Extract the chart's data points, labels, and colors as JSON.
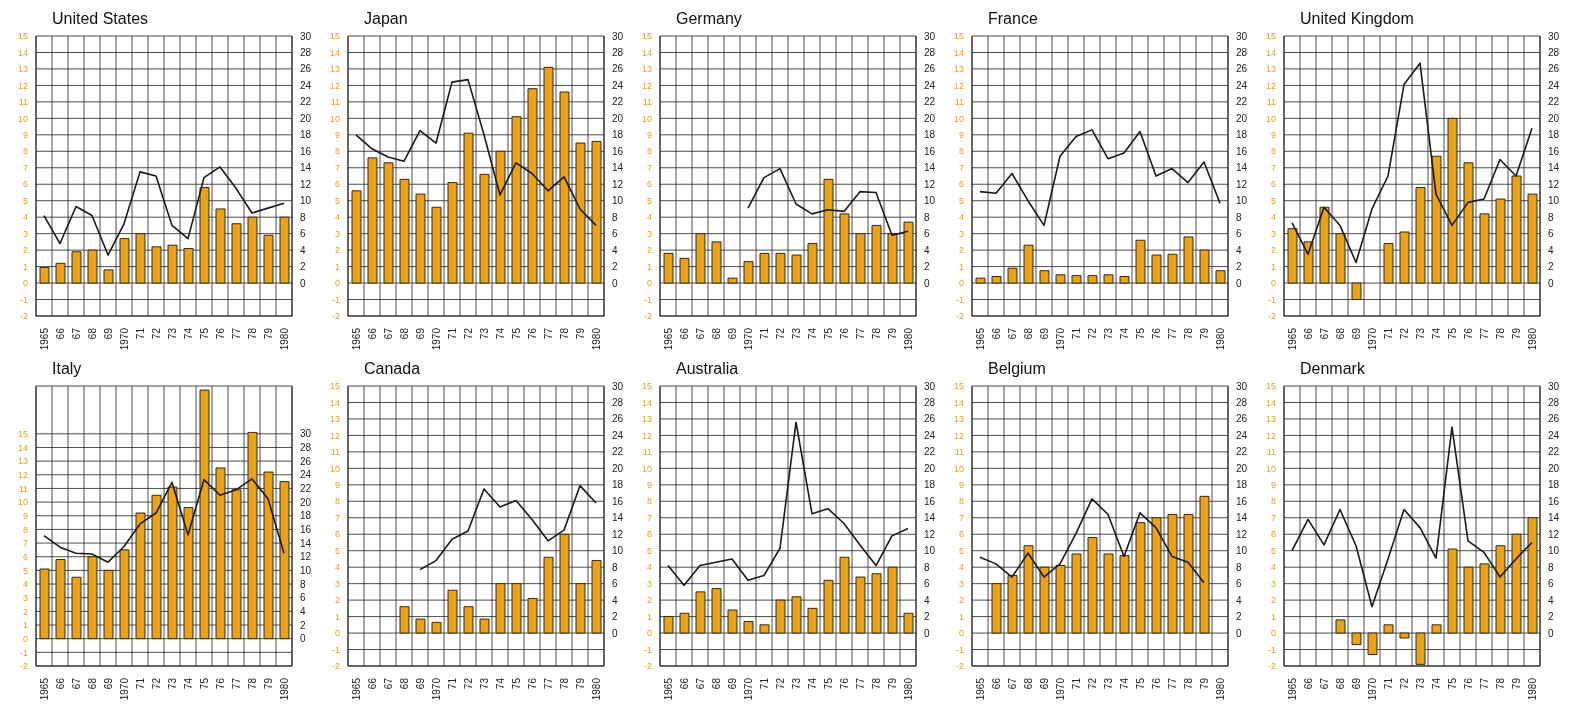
{
  "chart_data": [
    {
      "type": "bar",
      "title": "United States",
      "categories": [
        "1965",
        "66",
        "67",
        "68",
        "69",
        "1970",
        "71",
        "72",
        "73",
        "74",
        "75",
        "76",
        "77",
        "78",
        "79",
        "1980"
      ],
      "series": [
        {
          "color": "#e9a21f",
          "values": [
            0.95,
            1.2,
            1.9,
            2.0,
            0.8,
            2.7,
            3.0,
            2.2,
            2.3,
            2.1,
            5.8,
            4.5,
            3.6,
            4.0,
            2.9,
            4.0
          ]
        },
        {
          "type": "line",
          "axis": "y2",
          "color": "#1a1a1a",
          "values": [
            8.2,
            4.8,
            9.3,
            8.2,
            3.4,
            7.2,
            13.5,
            13.0,
            7.0,
            5.4,
            12.8,
            14.1,
            11.5,
            8.5,
            9.1,
            9.7
          ]
        }
      ],
      "ylim": [
        -2,
        15
      ],
      "yticks": [
        -2,
        -1,
        0,
        1,
        2,
        3,
        4,
        5,
        6,
        7,
        8,
        9,
        10,
        11,
        12,
        13,
        14,
        15
      ],
      "y2lim": [
        -4,
        30
      ],
      "y2ticks": [
        0,
        2,
        4,
        6,
        8,
        10,
        12,
        14,
        16,
        18,
        20,
        22,
        24,
        26,
        28,
        30
      ],
      "grid": true
    },
    {
      "type": "bar",
      "title": "Japan",
      "categories": [
        "1965",
        "66",
        "67",
        "68",
        "69",
        "1970",
        "71",
        "72",
        "73",
        "74",
        "75",
        "76",
        "77",
        "78",
        "79",
        "1980"
      ],
      "series": [
        {
          "color": "#e9a21f",
          "values": [
            5.6,
            7.6,
            7.3,
            6.3,
            5.4,
            4.6,
            6.1,
            9.1,
            6.6,
            8.0,
            10.1,
            11.8,
            13.1,
            11.6,
            8.5,
            8.6
          ]
        },
        {
          "type": "line",
          "axis": "y2",
          "color": "#1a1a1a",
          "values": [
            18.0,
            16.3,
            15.3,
            14.8,
            18.5,
            17.0,
            24.4,
            24.7,
            18.0,
            10.7,
            14.6,
            13.3,
            11.2,
            12.9,
            9.0,
            7.0
          ]
        }
      ],
      "ylim": [
        -2,
        15
      ],
      "yticks": [
        -2,
        -1,
        0,
        1,
        2,
        3,
        4,
        5,
        6,
        7,
        8,
        9,
        10,
        11,
        12,
        13,
        14,
        15
      ],
      "y2lim": [
        -4,
        30
      ],
      "y2ticks": [
        0,
        2,
        4,
        6,
        8,
        10,
        12,
        14,
        16,
        18,
        20,
        22,
        24,
        26,
        28,
        30
      ],
      "grid": true
    },
    {
      "type": "bar",
      "title": "Germany",
      "categories": [
        "1965",
        "66",
        "67",
        "68",
        "69",
        "1970",
        "71",
        "72",
        "73",
        "74",
        "75",
        "76",
        "77",
        "78",
        "79",
        "1980"
      ],
      "series": [
        {
          "color": "#e9a21f",
          "values": [
            1.8,
            1.5,
            3.0,
            2.5,
            0.3,
            1.3,
            1.8,
            1.8,
            1.7,
            2.4,
            6.3,
            4.2,
            3.0,
            3.5,
            3.0,
            3.7
          ]
        },
        {
          "type": "line",
          "axis": "y2",
          "color": "#1a1a1a",
          "values": [
            null,
            null,
            null,
            null,
            null,
            9.1,
            12.8,
            13.9,
            9.6,
            8.4,
            8.9,
            8.7,
            11.1,
            11.0,
            5.8,
            6.3
          ]
        }
      ],
      "ylim": [
        -2,
        15
      ],
      "yticks": [
        -2,
        -1,
        0,
        1,
        2,
        3,
        4,
        5,
        6,
        7,
        8,
        9,
        10,
        11,
        12,
        13,
        14,
        15
      ],
      "y2lim": [
        -4,
        30
      ],
      "y2ticks": [
        0,
        2,
        4,
        6,
        8,
        10,
        12,
        14,
        16,
        18,
        20,
        22,
        24,
        26,
        28,
        30
      ],
      "grid": true
    },
    {
      "type": "bar",
      "title": "France",
      "categories": [
        "1965",
        "66",
        "67",
        "68",
        "69",
        "1970",
        "71",
        "72",
        "73",
        "74",
        "75",
        "76",
        "77",
        "78",
        "79",
        "1980"
      ],
      "series": [
        {
          "color": "#e9a21f",
          "values": [
            0.3,
            0.4,
            0.9,
            2.3,
            0.75,
            0.5,
            0.45,
            0.45,
            0.5,
            0.4,
            2.6,
            1.7,
            1.75,
            2.8,
            2.0,
            0.75
          ]
        },
        {
          "type": "line",
          "axis": "y2",
          "color": "#1a1a1a",
          "values": [
            11.1,
            10.9,
            13.3,
            10.0,
            7.0,
            15.4,
            17.8,
            18.6,
            15.1,
            15.8,
            18.4,
            13.0,
            13.9,
            12.2,
            14.7,
            9.7
          ]
        }
      ],
      "ylim": [
        -2,
        15
      ],
      "yticks": [
        -2,
        -1,
        0,
        1,
        2,
        3,
        4,
        5,
        6,
        7,
        8,
        9,
        10,
        11,
        12,
        13,
        14,
        15
      ],
      "y2lim": [
        -4,
        30
      ],
      "y2ticks": [
        0,
        2,
        4,
        6,
        8,
        10,
        12,
        14,
        16,
        18,
        20,
        22,
        24,
        26,
        28,
        30
      ],
      "grid": true
    },
    {
      "type": "bar",
      "title": "United Kingdom",
      "categories": [
        "1965",
        "66",
        "67",
        "68",
        "69",
        "1970",
        "71",
        "72",
        "73",
        "74",
        "75",
        "76",
        "77",
        "78",
        "79",
        "1980"
      ],
      "series": [
        {
          "color": "#e9a21f",
          "values": [
            3.3,
            2.5,
            4.6,
            3.0,
            -1.0,
            null,
            2.4,
            3.1,
            5.8,
            7.7,
            10.0,
            7.3,
            4.2,
            5.1,
            6.5,
            5.4
          ]
        },
        {
          "type": "line",
          "axis": "y2",
          "color": "#1a1a1a",
          "values": [
            7.3,
            3.5,
            9.2,
            7.0,
            2.5,
            9.0,
            13.0,
            24.1,
            26.7,
            10.8,
            7.0,
            9.8,
            10.2,
            15.0,
            13.0,
            18.8
          ]
        }
      ],
      "ylim": [
        -2,
        15
      ],
      "yticks": [
        -2,
        -1,
        0,
        1,
        2,
        3,
        4,
        5,
        6,
        7,
        8,
        9,
        10,
        11,
        12,
        13,
        14,
        15
      ],
      "y2lim": [
        -4,
        30
      ],
      "y2ticks": [
        0,
        2,
        4,
        6,
        8,
        10,
        12,
        14,
        16,
        18,
        20,
        22,
        24,
        26,
        28,
        30
      ],
      "grid": true
    },
    {
      "type": "bar",
      "title": "Italy",
      "categories": [
        "1965",
        "66",
        "67",
        "68",
        "69",
        "1970",
        "71",
        "72",
        "73",
        "74",
        "75",
        "76",
        "77",
        "78",
        "79",
        "1980"
      ],
      "series": [
        {
          "color": "#e9a21f",
          "values": [
            5.1,
            5.8,
            4.5,
            6.0,
            5.0,
            6.5,
            9.2,
            10.5,
            11.1,
            9.6,
            18.2,
            12.5,
            10.9,
            15.1,
            12.2,
            11.5
          ]
        },
        {
          "type": "line",
          "axis": "y2",
          "color": "#1a1a1a",
          "values": [
            15.1,
            13.4,
            12.5,
            12.4,
            11.2,
            13.5,
            16.8,
            18.4,
            22.9,
            15.2,
            23.3,
            21.0,
            21.8,
            23.4,
            20.5,
            12.5
          ]
        }
      ],
      "ylim": [
        -2,
        18.5
      ],
      "yticks": [
        -2,
        -1,
        0,
        1,
        2,
        3,
        4,
        5,
        6,
        7,
        8,
        9,
        10,
        11,
        12,
        13,
        14,
        15
      ],
      "y2lim": [
        -4,
        37
      ],
      "y2ticks": [
        0,
        2,
        4,
        6,
        8,
        10,
        12,
        14,
        16,
        18,
        20,
        22,
        24,
        26,
        28,
        30
      ],
      "grid": true
    },
    {
      "type": "bar",
      "title": "Canada",
      "categories": [
        "1965",
        "66",
        "67",
        "68",
        "69",
        "1970",
        "71",
        "72",
        "73",
        "74",
        "75",
        "76",
        "77",
        "78",
        "79",
        "1980"
      ],
      "series": [
        {
          "color": "#e9a21f",
          "values": [
            null,
            null,
            null,
            1.6,
            0.85,
            0.65,
            2.6,
            1.6,
            0.85,
            3.0,
            3.0,
            2.1,
            4.6,
            6.0,
            3.0,
            4.4
          ]
        },
        {
          "type": "line",
          "axis": "y2",
          "color": "#1a1a1a",
          "values": [
            null,
            null,
            null,
            null,
            7.7,
            8.8,
            11.4,
            12.4,
            17.5,
            15.3,
            16.1,
            13.8,
            11.2,
            12.5,
            17.9,
            15.8
          ]
        }
      ],
      "ylim": [
        -2,
        15
      ],
      "yticks": [
        -2,
        -1,
        0,
        1,
        2,
        3,
        4,
        5,
        6,
        7,
        8,
        9,
        10,
        11,
        12,
        13,
        14,
        15
      ],
      "y2lim": [
        -4,
        30
      ],
      "y2ticks": [
        0,
        2,
        4,
        6,
        8,
        10,
        12,
        14,
        16,
        18,
        20,
        22,
        24,
        26,
        28,
        30
      ],
      "grid": true
    },
    {
      "type": "bar",
      "title": "Australia",
      "categories": [
        "1965",
        "66",
        "67",
        "68",
        "69",
        "1970",
        "71",
        "72",
        "73",
        "74",
        "75",
        "76",
        "77",
        "78",
        "79",
        "1980"
      ],
      "series": [
        {
          "color": "#e9a21f",
          "values": [
            1.0,
            1.2,
            2.5,
            2.7,
            1.4,
            0.7,
            0.5,
            2.0,
            2.2,
            1.5,
            3.2,
            4.6,
            3.4,
            3.6,
            4.0,
            1.2
          ]
        },
        {
          "type": "line",
          "axis": "y2",
          "color": "#1a1a1a",
          "values": [
            8.2,
            5.8,
            8.2,
            8.6,
            9.0,
            6.4,
            7.0,
            10.3,
            25.6,
            14.5,
            15.1,
            13.3,
            10.7,
            8.2,
            11.8,
            12.7
          ]
        }
      ],
      "ylim": [
        -2,
        15
      ],
      "yticks": [
        -2,
        -1,
        0,
        1,
        2,
        3,
        4,
        5,
        6,
        7,
        8,
        9,
        10,
        11,
        12,
        13,
        14,
        15
      ],
      "y2lim": [
        -4,
        30
      ],
      "y2ticks": [
        0,
        2,
        4,
        6,
        8,
        10,
        12,
        14,
        16,
        18,
        20,
        22,
        24,
        26,
        28,
        30
      ],
      "grid": true
    },
    {
      "type": "bar",
      "title": "Belgium",
      "categories": [
        "1965",
        "66",
        "67",
        "68",
        "69",
        "1970",
        "71",
        "72",
        "73",
        "74",
        "75",
        "76",
        "77",
        "78",
        "79",
        "1980"
      ],
      "series": [
        {
          "color": "#e9a21f",
          "values": [
            null,
            3.0,
            3.5,
            5.3,
            4.0,
            4.1,
            4.8,
            5.8,
            4.8,
            4.7,
            6.7,
            7.0,
            7.2,
            7.2,
            8.3,
            null
          ]
        },
        {
          "type": "line",
          "axis": "y2",
          "color": "#1a1a1a",
          "values": [
            9.2,
            8.4,
            6.8,
            9.7,
            6.8,
            8.4,
            12.1,
            16.3,
            14.4,
            9.3,
            14.6,
            12.8,
            9.3,
            8.6,
            6.1,
            null
          ]
        }
      ],
      "ylim": [
        -2,
        15
      ],
      "yticks": [
        -2,
        -1,
        0,
        1,
        2,
        3,
        4,
        5,
        6,
        7,
        8,
        9,
        10,
        11,
        12,
        13,
        14,
        15
      ],
      "y2lim": [
        -4,
        30
      ],
      "y2ticks": [
        0,
        2,
        4,
        6,
        8,
        10,
        12,
        14,
        16,
        18,
        20,
        22,
        24,
        26,
        28,
        30
      ],
      "grid": true
    },
    {
      "type": "bar",
      "title": "Denmark",
      "categories": [
        "1965",
        "66",
        "67",
        "68",
        "69",
        "1970",
        "71",
        "72",
        "73",
        "74",
        "75",
        "76",
        "77",
        "78",
        "79",
        "1980"
      ],
      "series": [
        {
          "color": "#e9a21f",
          "values": [
            null,
            null,
            null,
            0.8,
            -0.7,
            -1.3,
            0.5,
            -0.3,
            -1.9,
            0.5,
            5.1,
            4.0,
            4.2,
            5.3,
            6.0,
            7.0
          ]
        },
        {
          "type": "line",
          "axis": "y2",
          "color": "#1a1a1a",
          "values": [
            10.0,
            13.8,
            10.7,
            15.0,
            10.6,
            3.2,
            9.0,
            15.0,
            12.8,
            9.1,
            25.0,
            11.2,
            9.8,
            6.8,
            9.0,
            11.0
          ]
        }
      ],
      "ylim": [
        -2,
        15
      ],
      "yticks": [
        -2,
        -1,
        0,
        1,
        2,
        3,
        4,
        5,
        6,
        7,
        8,
        9,
        10,
        11,
        12,
        13,
        14,
        15
      ],
      "y2lim": [
        -4,
        30
      ],
      "y2ticks": [
        0,
        2,
        4,
        6,
        8,
        10,
        12,
        14,
        16,
        18,
        20,
        22,
        24,
        26,
        28,
        30
      ],
      "grid": true
    }
  ]
}
